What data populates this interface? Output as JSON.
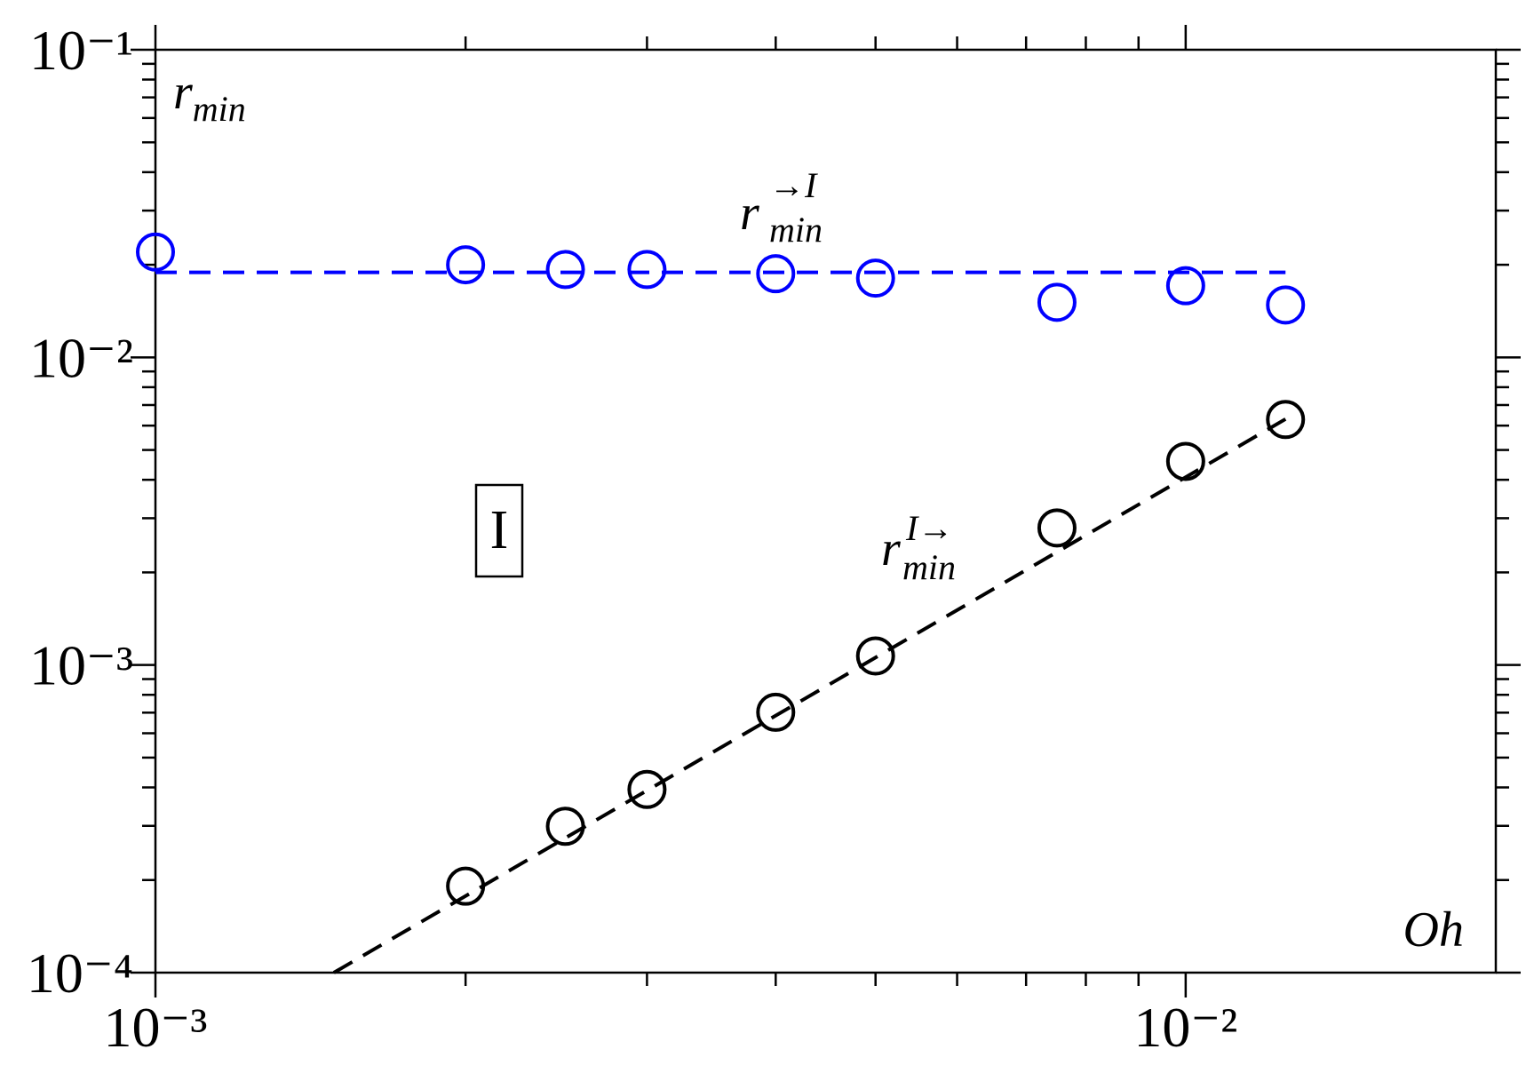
{
  "chart_data": {
    "type": "scatter",
    "xscale": "log",
    "yscale": "log",
    "xlim": [
      0.001,
      0.02
    ],
    "ylim": [
      0.0001,
      0.1
    ],
    "xticks": [
      {
        "value": 0.001,
        "label": "10⁻³"
      },
      {
        "value": 0.01,
        "label": "10⁻²"
      }
    ],
    "x_minor_ticks": [
      0.002,
      0.003,
      0.004,
      0.005,
      0.006,
      0.007,
      0.008,
      0.009
    ],
    "yticks": [
      {
        "value": 0.0001,
        "label": "10⁻⁴"
      },
      {
        "value": 0.001,
        "label": "10⁻³"
      },
      {
        "value": 0.01,
        "label": "10⁻²"
      },
      {
        "value": 0.1,
        "label": "10⁻¹"
      }
    ],
    "y_minor_ticks": [
      0.0002,
      0.0003,
      0.0004,
      0.0005,
      0.0006,
      0.0007,
      0.0008,
      0.0009,
      0.002,
      0.003,
      0.004,
      0.005,
      0.006,
      0.007,
      0.008,
      0.009,
      0.02,
      0.03,
      0.04,
      0.05,
      0.06,
      0.07,
      0.08,
      0.09
    ],
    "xlabel": "Oh",
    "ylabel": {
      "text": "r",
      "sub": "min"
    },
    "annotations": [
      {
        "text": "r",
        "sub": "min",
        "sup": "→I"
      },
      {
        "text": "r",
        "sub": "min",
        "sup": "I→"
      },
      {
        "text": "I"
      }
    ],
    "series": [
      {
        "color": "#0000ff",
        "marker": "circle",
        "x": [
          0.001,
          0.002,
          0.0025,
          0.003,
          0.004,
          0.005,
          0.0075,
          0.01,
          0.0125
        ],
        "values": [
          0.022,
          0.02,
          0.0193,
          0.0193,
          0.0187,
          0.0181,
          0.0151,
          0.0171,
          0.0148
        ]
      },
      {
        "color": "#000000",
        "marker": "circle",
        "x": [
          0.002,
          0.0025,
          0.003,
          0.004,
          0.005,
          0.0075,
          0.01,
          0.0125
        ],
        "values": [
          0.000191,
          0.000299,
          0.000394,
          0.000702,
          0.00107,
          0.00279,
          0.00459,
          0.00628
        ]
      },
      {
        "color": "#0000ff",
        "line": "dashed",
        "x": [
          0.001,
          0.0125
        ],
        "values": [
          0.0189,
          0.0189
        ]
      },
      {
        "color": "#000000",
        "line": "dashed",
        "x": [
          0.00149,
          0.0125
        ],
        "values": [
          0.0001,
          0.0063
        ]
      }
    ]
  }
}
